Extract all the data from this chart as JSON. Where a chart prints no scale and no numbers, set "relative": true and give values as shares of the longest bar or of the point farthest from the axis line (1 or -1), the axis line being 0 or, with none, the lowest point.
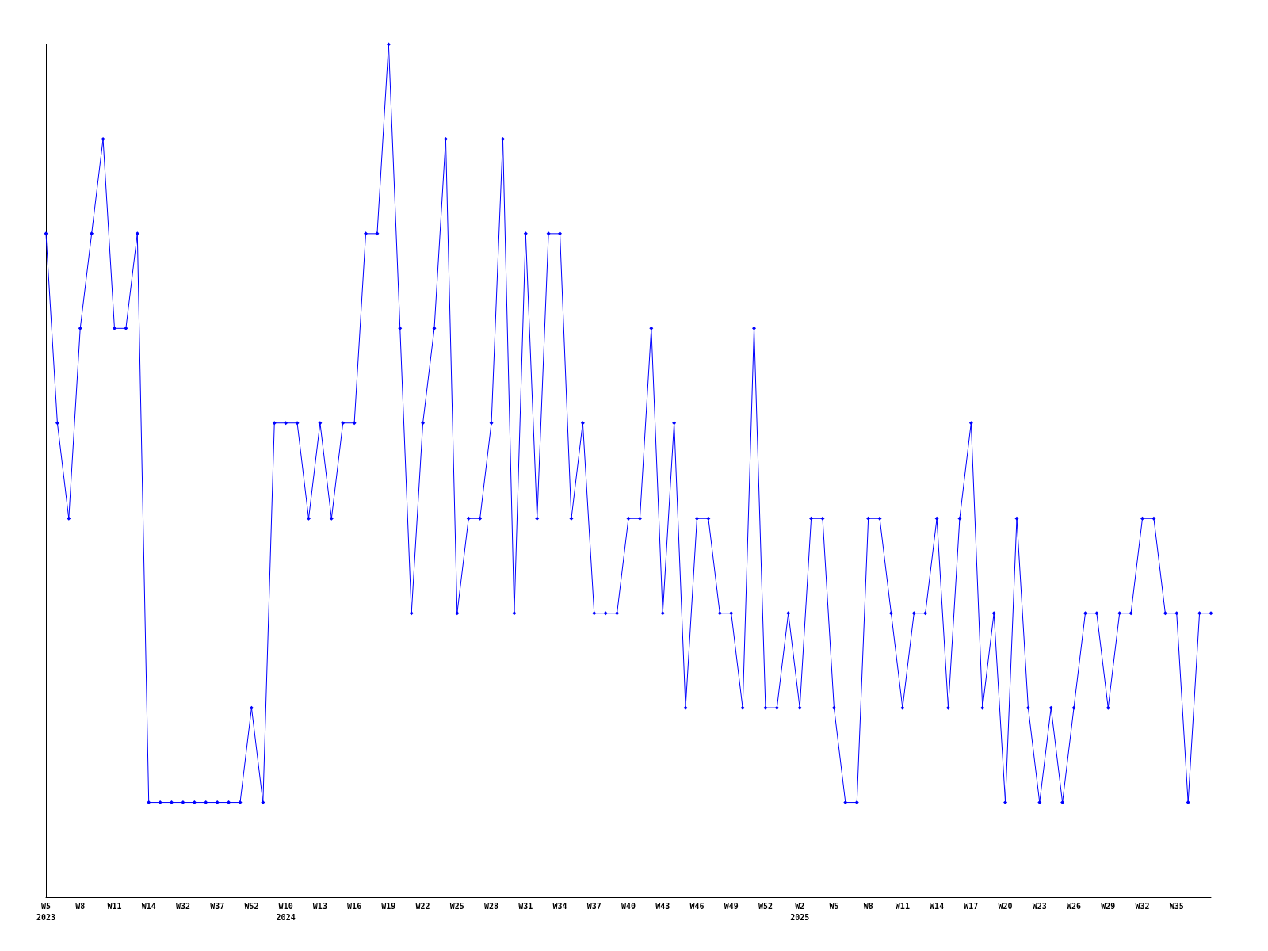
{
  "chart_data": {
    "type": "line",
    "relative": true,
    "color": "#0000ff",
    "marker": "diamond",
    "line_style": "solid",
    "grid": false,
    "annotations": [
      "2023",
      "2024",
      "2025"
    ],
    "categories": [
      "W5",
      null,
      null,
      "W8",
      null,
      null,
      "W11",
      null,
      null,
      "W14",
      null,
      null,
      "W32",
      null,
      null,
      "W37",
      null,
      null,
      "W52",
      null,
      null,
      "W10",
      null,
      null,
      "W13",
      null,
      null,
      "W16",
      null,
      null,
      "W19",
      null,
      null,
      "W22",
      null,
      null,
      "W25",
      null,
      null,
      "W28",
      null,
      null,
      "W31",
      null,
      null,
      "W34",
      null,
      null,
      "W37",
      null,
      null,
      "W40",
      null,
      null,
      "W43",
      null,
      null,
      "W46",
      null,
      null,
      "W49",
      null,
      null,
      "W52",
      null,
      null,
      "W2",
      null,
      null,
      "W5",
      null,
      null,
      "W8",
      null,
      null,
      "W11",
      null,
      null,
      "W14",
      null,
      null,
      "W17",
      null,
      null,
      "W20",
      null,
      null,
      "W23",
      null,
      null,
      "W26",
      null,
      null,
      "W29",
      null,
      null,
      "W32",
      null,
      null,
      "W35",
      null,
      null,
      null
    ],
    "values": [
      0.778,
      0.556,
      0.444,
      0.667,
      0.778,
      0.889,
      0.667,
      0.667,
      0.778,
      0.111,
      0.111,
      0.111,
      0.111,
      0.111,
      0.111,
      0.111,
      0.111,
      0.111,
      0.222,
      0.111,
      0.556,
      0.556,
      0.556,
      0.444,
      0.556,
      0.444,
      0.556,
      0.556,
      0.778,
      0.778,
      1,
      0.667,
      0.333,
      0.556,
      0.667,
      0.889,
      0.333,
      0.444,
      0.444,
      0.556,
      0.889,
      0.333,
      0.778,
      0.444,
      0.778,
      0.778,
      0.444,
      0.556,
      0.333,
      0.333,
      0.333,
      0.444,
      0.444,
      0.667,
      0.333,
      0.556,
      0.222,
      0.444,
      0.444,
      0.333,
      0.333,
      0.222,
      0.667,
      0.222,
      0.222,
      0.333,
      0.222,
      0.444,
      0.444,
      0.222,
      0.111,
      0.111,
      0.444,
      0.444,
      0.333,
      0.222,
      0.333,
      0.333,
      0.444,
      0.222,
      0.444,
      0.556,
      0.222,
      0.333,
      0.111,
      0.444,
      0.222,
      0.111,
      0.222,
      0.111,
      0.222,
      0.333,
      0.333,
      0.222,
      0.333,
      0.333,
      0.444,
      0.444,
      0.333,
      0.333,
      0.111,
      0.333,
      0.333
    ]
  }
}
